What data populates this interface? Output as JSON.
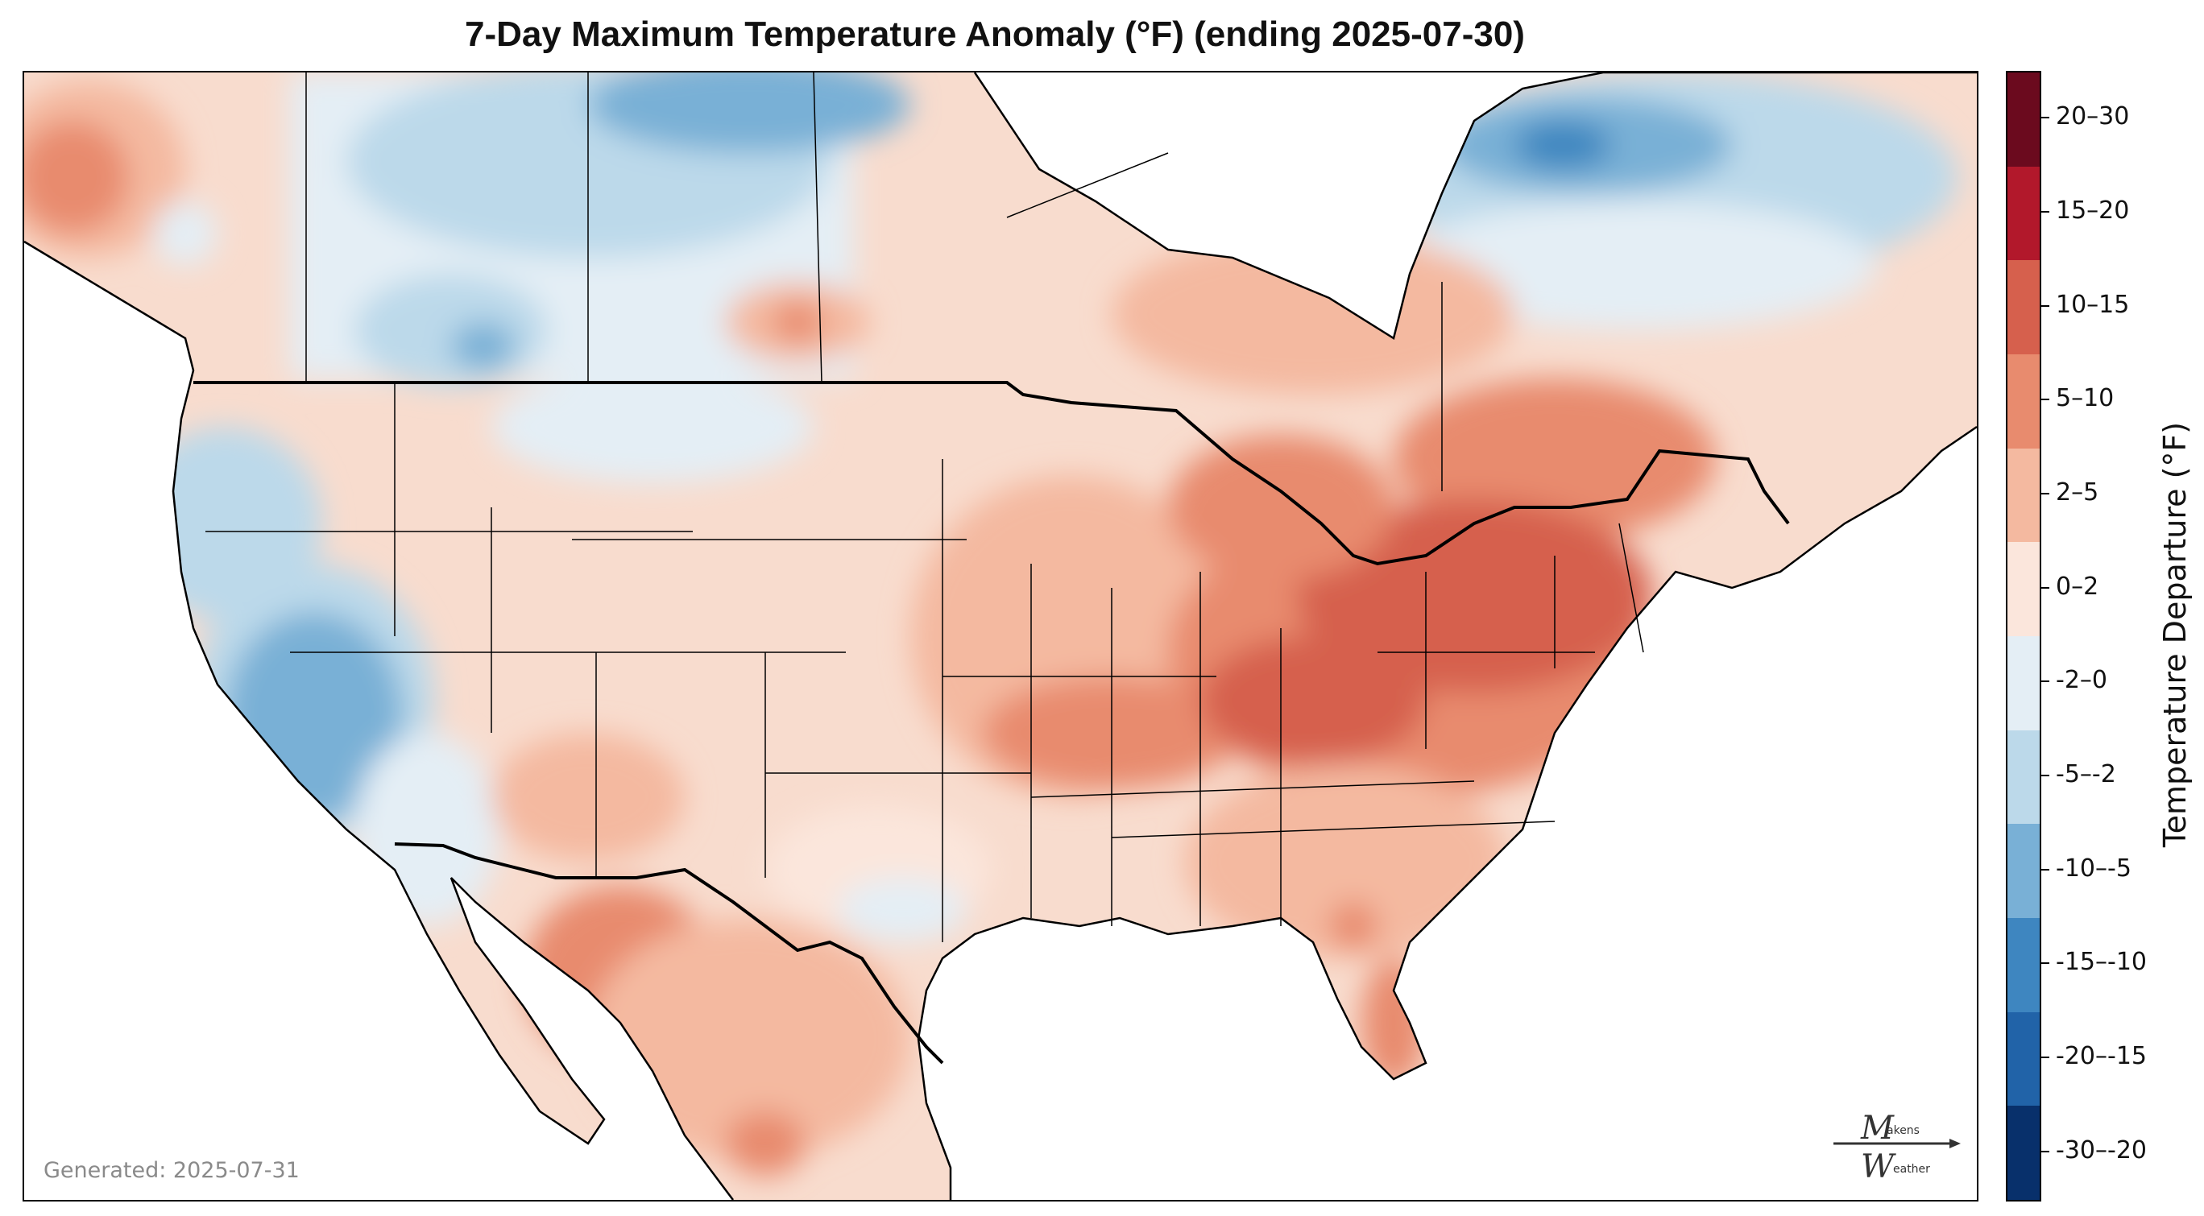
{
  "title": "7-Day Maximum Temperature Anomaly (°F) (ending 2025-07-30)",
  "generated": "Generated: 2025-07-31",
  "colorbar": {
    "title": "Temperature Departure (°F)",
    "bins": [
      {
        "label": "20–30",
        "color": "#6b0a1e"
      },
      {
        "label": "15–20",
        "color": "#b2182b"
      },
      {
        "label": "10–15",
        "color": "#d6604d"
      },
      {
        "label": "5–10",
        "color": "#e88b6e"
      },
      {
        "label": "2–5",
        "color": "#f4b9a0"
      },
      {
        "label": "0–2",
        "color": "#fbe6dc"
      },
      {
        "label": "-2–0",
        "color": "#e4eef5"
      },
      {
        "label": "-5–-2",
        "color": "#bcd9ea"
      },
      {
        "label": "-10–-5",
        "color": "#79b0d6"
      },
      {
        "label": "-15–-10",
        "color": "#3e86c0"
      },
      {
        "label": "-20–-15",
        "color": "#2163a8"
      },
      {
        "label": "-30–-20",
        "color": "#08306b"
      }
    ]
  },
  "logo": {
    "line1": "akens",
    "line2": "eather",
    "initial1": "M",
    "initial2": "W"
  },
  "map_colors": {
    "ocean": "#ffffff",
    "border": "#000000"
  }
}
